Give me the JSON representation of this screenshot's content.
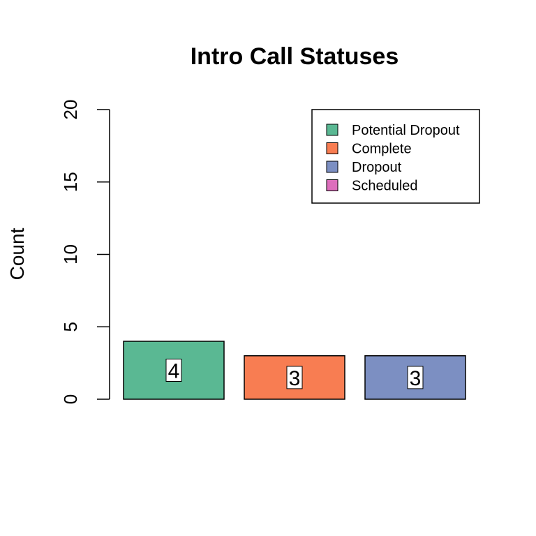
{
  "chart_data": {
    "type": "bar",
    "title": "Intro Call Statuses",
    "xlabel": "",
    "ylabel": "Count",
    "ylim": [
      0,
      20
    ],
    "yticks": [
      0,
      5,
      10,
      15,
      20
    ],
    "grid": false,
    "legend_position": "top-right",
    "categories": [
      "Potential Dropout",
      "Complete",
      "Dropout"
    ],
    "values": [
      4,
      3,
      3
    ],
    "bar_colors": [
      "#5ab893",
      "#f87d52",
      "#7c8fc2"
    ],
    "legend": [
      {
        "label": "Potential Dropout",
        "color": "#5ab893"
      },
      {
        "label": "Complete",
        "color": "#f87d52"
      },
      {
        "label": "Dropout",
        "color": "#7c8fc2"
      },
      {
        "label": "Scheduled",
        "color": "#dd6ebc"
      }
    ],
    "data_labels": [
      "4",
      "3",
      "3"
    ]
  }
}
